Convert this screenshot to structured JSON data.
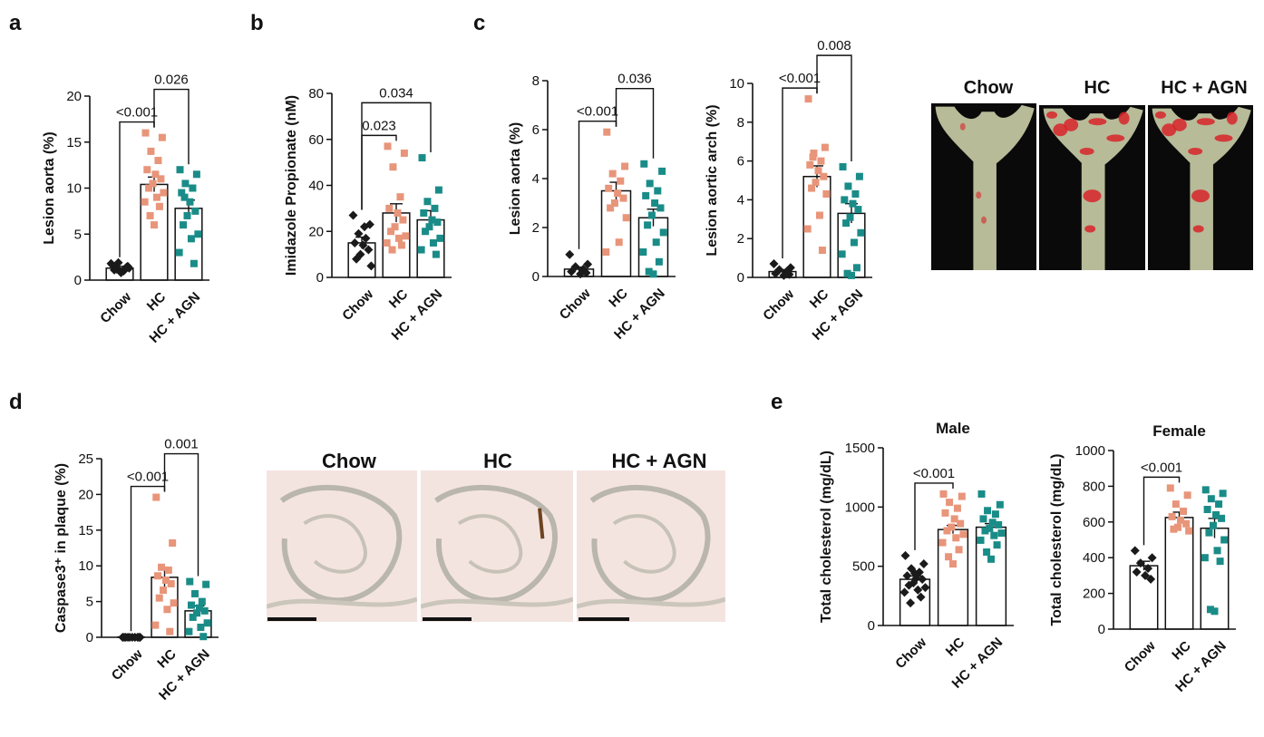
{
  "panel_labels": {
    "a": "a",
    "b": "b",
    "c": "c",
    "d": "d",
    "e": "e"
  },
  "colors": {
    "chow": "#1a1a1a",
    "hc": "#e8957a",
    "agn": "#1a8c88",
    "lesion": "#d8242a",
    "tissue": "#b7bb98",
    "stain": "#6b4420"
  },
  "groups": [
    "Chow",
    "HC",
    "HC + AGN"
  ],
  "aorta_images": {
    "labels": [
      "Chow",
      "HC",
      "HC + AGN"
    ]
  },
  "histology_images": {
    "labels": [
      "Chow",
      "HC",
      "HC + AGN"
    ]
  },
  "chart_data": [
    {
      "id": "a",
      "type": "scatter",
      "ylabel": "Lesion aorta (%)",
      "ylim": [
        0,
        20
      ],
      "yticks": [
        0,
        5,
        10,
        15,
        20
      ],
      "categories": [
        "Chow",
        "HC",
        "HC + AGN"
      ],
      "means": [
        1.3,
        10.4,
        7.8
      ],
      "sem": [
        0.2,
        0.8,
        0.9
      ],
      "points": [
        [
          1.8,
          1.5,
          1.2,
          1.0,
          1.6,
          0.8,
          1.4,
          1.9,
          1.1,
          1.3
        ],
        [
          16.0,
          15.5,
          14.0,
          13.0,
          12.0,
          11.5,
          11.0,
          10.5,
          10.0,
          9.5,
          9.0,
          8.5,
          8.0,
          7.0,
          6.0
        ],
        [
          12.0,
          11.5,
          10.5,
          10.0,
          9.5,
          8.5,
          7.5,
          7.0,
          6.0,
          5.0,
          4.5,
          3.0,
          1.8,
          9.0
        ]
      ],
      "brackets": [
        {
          "from": 0,
          "to": 1,
          "label": "<0.001"
        },
        {
          "from": 1,
          "to": 2,
          "label": "0.026"
        }
      ]
    },
    {
      "id": "b",
      "type": "scatter",
      "ylabel": "Imidazole Propionate (nM)",
      "ylim": [
        0,
        80
      ],
      "yticks": [
        0,
        20,
        40,
        60,
        80
      ],
      "categories": [
        "Chow",
        "HC",
        "HC + AGN"
      ],
      "means": [
        15,
        28,
        25
      ],
      "sem": [
        2.5,
        4,
        4
      ],
      "points": [
        [
          27,
          23,
          19,
          17,
          15,
          14,
          12,
          10,
          8,
          5,
          22
        ],
        [
          57,
          54,
          48,
          35,
          30,
          28,
          25,
          22,
          20,
          18,
          17,
          15,
          14,
          12
        ],
        [
          52,
          38,
          33,
          30,
          28,
          25,
          24,
          22,
          20,
          17,
          15,
          12,
          10
        ]
      ],
      "brackets": [
        {
          "from": 0,
          "to": 1,
          "label": "0.023"
        },
        {
          "from": 0,
          "to": 2,
          "label": "0.034"
        }
      ]
    },
    {
      "id": "c1",
      "type": "scatter",
      "ylabel": "Lesion aorta (%)",
      "ylim": [
        0,
        8
      ],
      "yticks": [
        0,
        2,
        4,
        6,
        8
      ],
      "categories": [
        "Chow",
        "HC",
        "HC + AGN"
      ],
      "means": [
        0.3,
        3.5,
        2.4
      ],
      "sem": [
        0.08,
        0.35,
        0.35
      ],
      "points": [
        [
          0.9,
          0.5,
          0.4,
          0.3,
          0.2,
          0.1,
          0.15
        ],
        [
          5.9,
          4.5,
          4.2,
          3.9,
          3.6,
          3.4,
          3.2,
          3.0,
          2.8,
          2.4,
          1.4,
          1.0
        ],
        [
          4.6,
          4.3,
          3.8,
          3.5,
          3.3,
          3.0,
          2.8,
          2.5,
          2.1,
          1.8,
          1.4,
          1.0,
          0.6,
          0.2,
          0.1
        ]
      ],
      "brackets": [
        {
          "from": 0,
          "to": 1,
          "label": "<0.001"
        },
        {
          "from": 1,
          "to": 2,
          "label": "0.036"
        }
      ]
    },
    {
      "id": "c2",
      "type": "scatter",
      "ylabel": "Lesion aortic arch (%)",
      "ylim": [
        0,
        10
      ],
      "yticks": [
        0,
        2,
        4,
        6,
        8,
        10
      ],
      "categories": [
        "Chow",
        "HC",
        "HC + AGN"
      ],
      "means": [
        0.3,
        5.2,
        3.3
      ],
      "sem": [
        0.1,
        0.55,
        0.5
      ],
      "points": [
        [
          0.7,
          0.5,
          0.4,
          0.3,
          0.2,
          0.1,
          0.15
        ],
        [
          9.2,
          6.7,
          6.4,
          6.0,
          5.8,
          5.5,
          5.2,
          4.9,
          4.6,
          4.3,
          3.2,
          2.5,
          1.4,
          6.2
        ],
        [
          5.7,
          5.2,
          4.7,
          4.3,
          4.0,
          3.8,
          3.5,
          3.1,
          2.8,
          2.3,
          1.8,
          1.2,
          0.5,
          0.2,
          0.1
        ]
      ],
      "brackets": [
        {
          "from": 0,
          "to": 1,
          "label": "<0.001"
        },
        {
          "from": 1,
          "to": 2,
          "label": "0.008"
        }
      ]
    },
    {
      "id": "d",
      "type": "scatter",
      "ylabel": "Caspase3⁺ in plaque (%)",
      "ylim": [
        0,
        25
      ],
      "yticks": [
        0,
        5,
        10,
        15,
        20,
        25
      ],
      "categories": [
        "Chow",
        "HC",
        "HC + AGN"
      ],
      "means": [
        0.05,
        8.4,
        3.7
      ],
      "sem": [
        0.05,
        1.4,
        0.7
      ],
      "points": [
        [
          0,
          0,
          0,
          0,
          0,
          0,
          0,
          0,
          0,
          0
        ],
        [
          19.6,
          13.2,
          9.8,
          9.4,
          8.6,
          8.0,
          7.5,
          6.6,
          5.5,
          4.8,
          3.9,
          1.7,
          0.8
        ],
        [
          7.8,
          7.4,
          6.1,
          5.0,
          4.5,
          4.1,
          3.7,
          3.4,
          2.8,
          2.0,
          1.4,
          0.8,
          0.1
        ]
      ],
      "brackets": [
        {
          "from": 0,
          "to": 1,
          "label": "<0.001"
        },
        {
          "from": 1,
          "to": 2,
          "label": "0.001"
        }
      ]
    },
    {
      "id": "e1",
      "type": "scatter",
      "title": "Male",
      "ylabel": "Total cholesterol (mg/dL)",
      "ylim": [
        0,
        1500
      ],
      "yticks": [
        0,
        500,
        1000,
        1500
      ],
      "categories": [
        "Chow",
        "HC",
        "HC + AGN"
      ],
      "means": [
        390,
        810,
        830
      ],
      "sem": [
        28,
        35,
        30
      ],
      "points": [
        [
          590,
          520,
          480,
          450,
          420,
          400,
          390,
          360,
          340,
          320,
          300,
          280,
          240,
          190,
          440
        ],
        [
          1110,
          1090,
          1040,
          990,
          950,
          900,
          860,
          830,
          800,
          770,
          740,
          700,
          640,
          580,
          520
        ],
        [
          1110,
          1020,
          970,
          940,
          900,
          870,
          850,
          820,
          800,
          780,
          760,
          720,
          680,
          620,
          560
        ]
      ],
      "brackets": [
        {
          "from": 0,
          "to": 1,
          "label": "<0.001"
        }
      ]
    },
    {
      "id": "e2",
      "type": "scatter",
      "title": "Female",
      "ylabel": "Total cholesterol (mg/dL)",
      "ylim": [
        0,
        1000
      ],
      "yticks": [
        0,
        200,
        400,
        600,
        800,
        1000
      ],
      "categories": [
        "Chow",
        "HC",
        "HC + AGN"
      ],
      "means": [
        355,
        625,
        565
      ],
      "sem": [
        25,
        30,
        55
      ],
      "points": [
        [
          440,
          400,
          370,
          340,
          320,
          300,
          280
        ],
        [
          790,
          750,
          700,
          660,
          630,
          610,
          590,
          570,
          560,
          550
        ],
        [
          780,
          760,
          730,
          700,
          670,
          640,
          620,
          580,
          540,
          500,
          440,
          400,
          380,
          110,
          100
        ]
      ],
      "brackets": [
        {
          "from": 0,
          "to": 1,
          "label": "<0.001"
        }
      ]
    }
  ]
}
